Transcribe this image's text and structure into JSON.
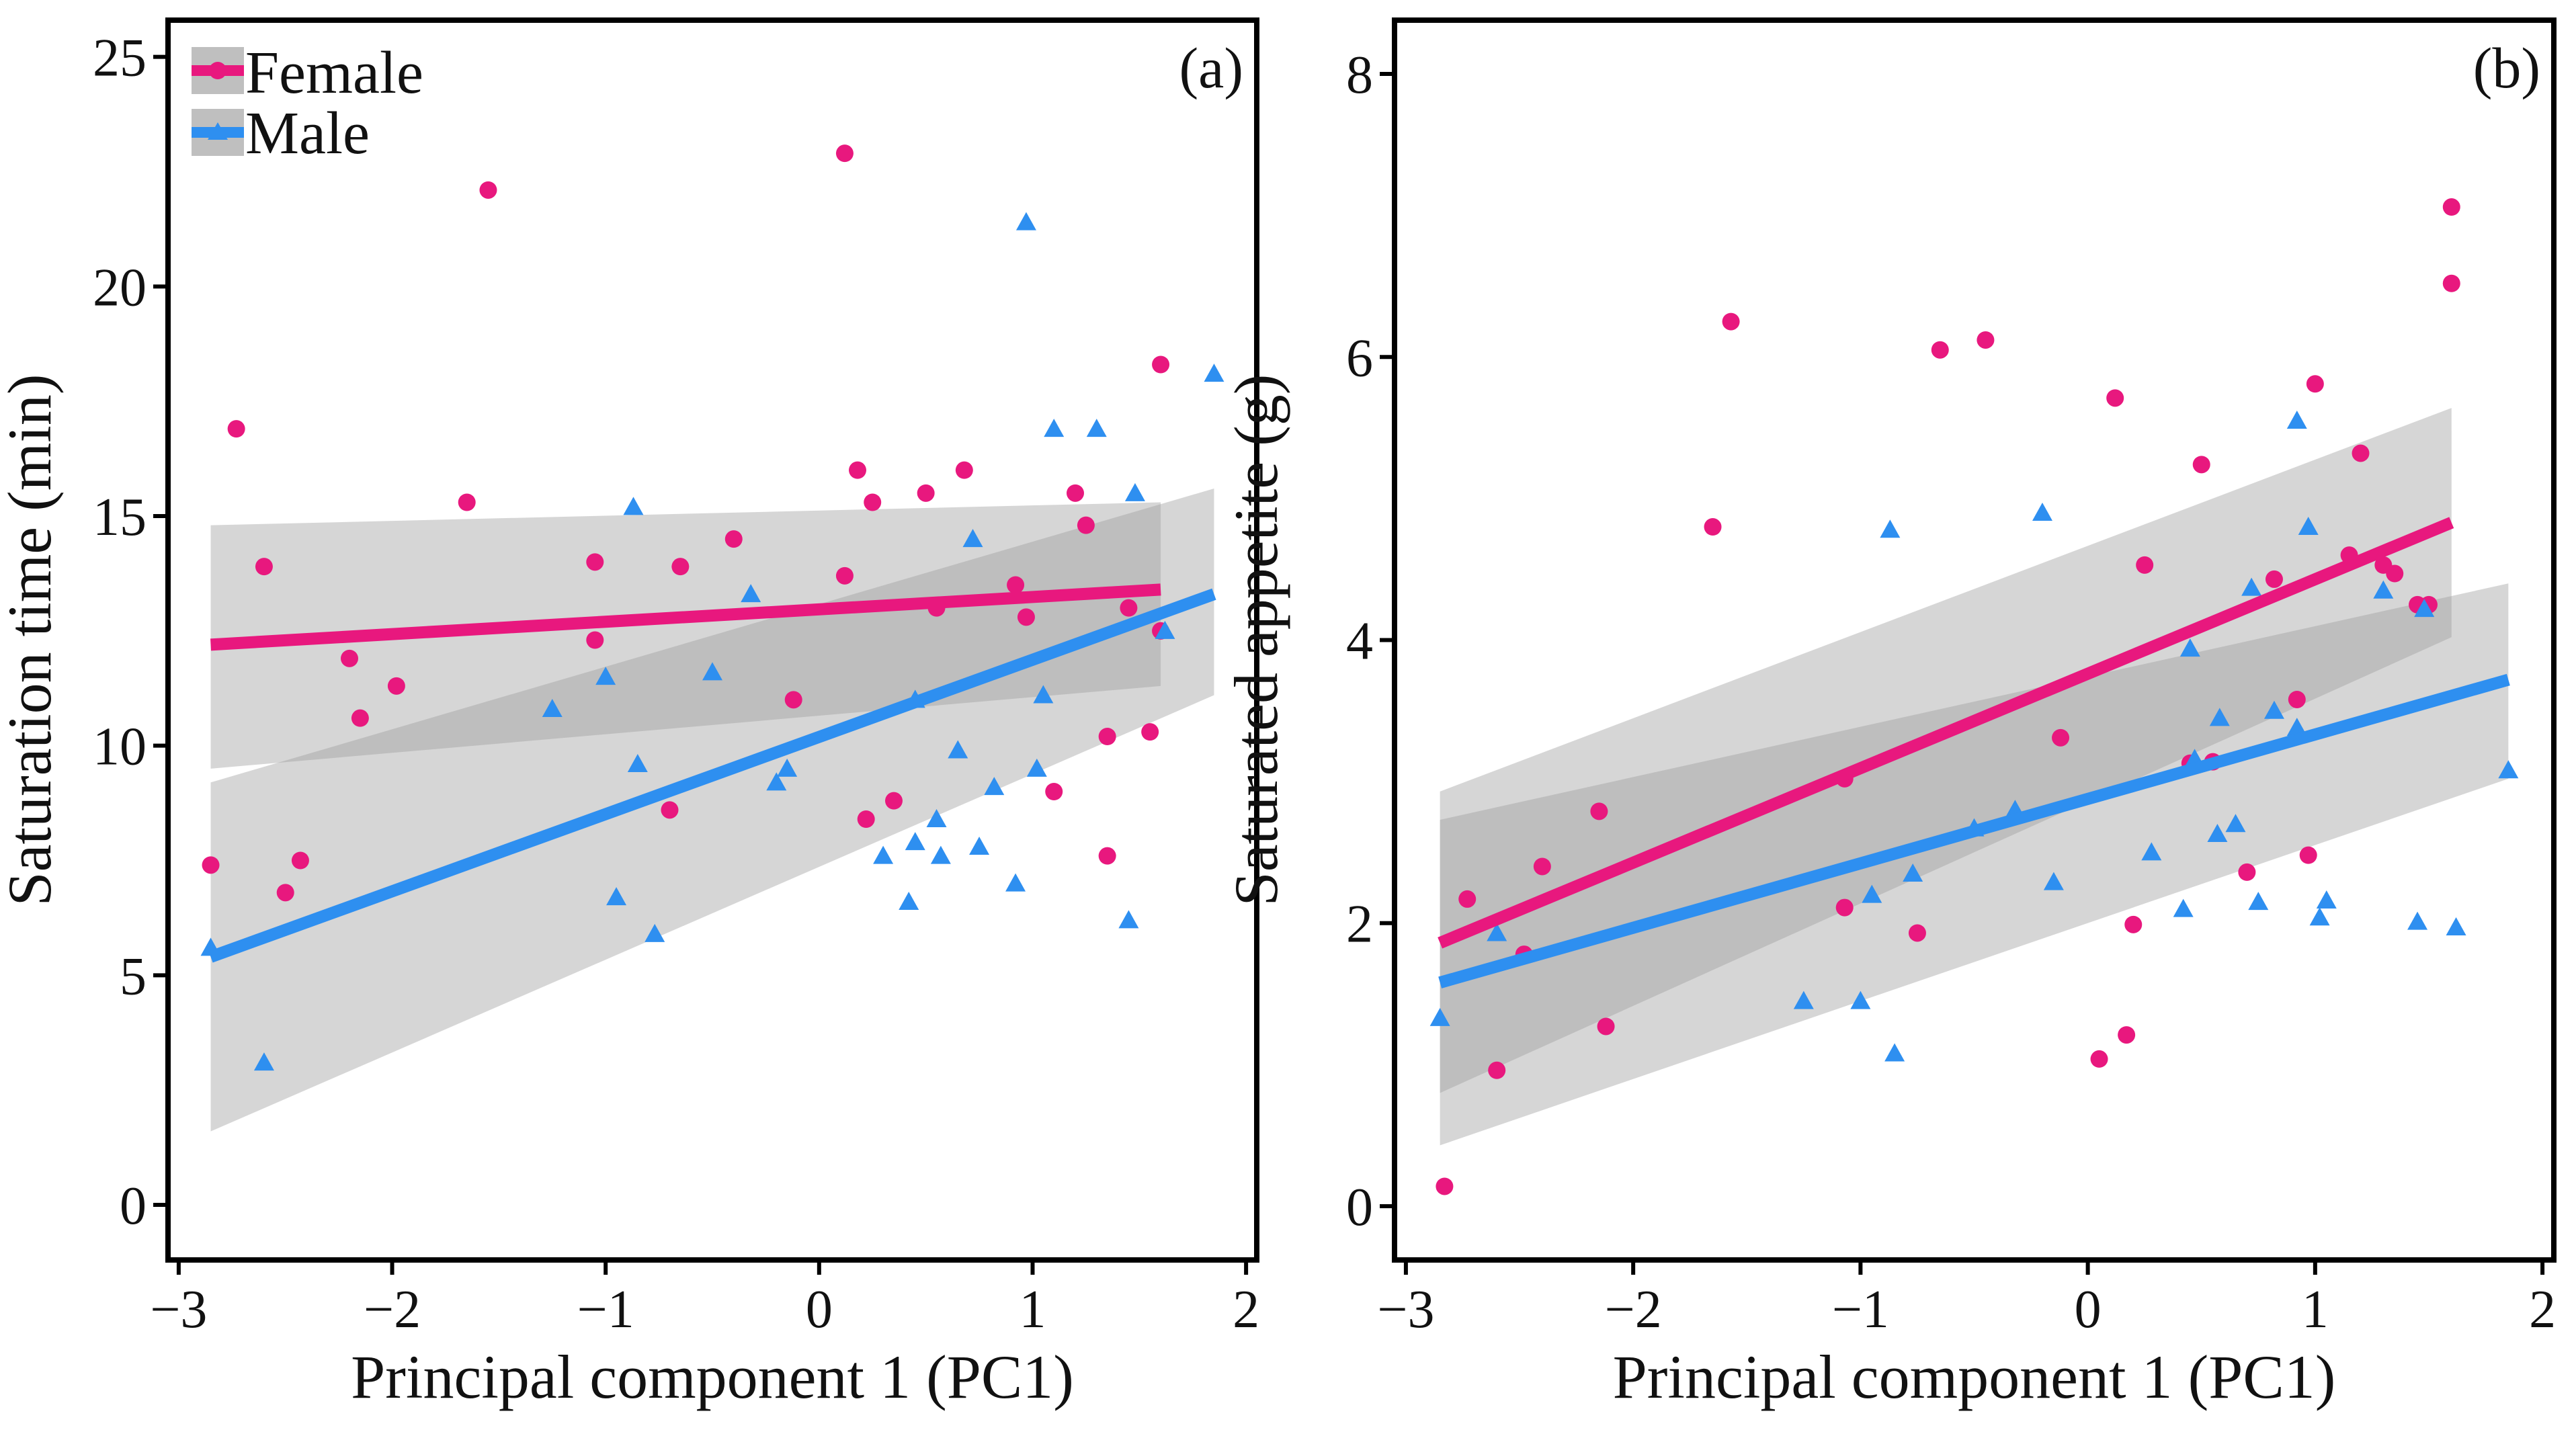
{
  "colors": {
    "female": "#e8187e",
    "male": "#2e8ff0",
    "band": "#9e9e9e",
    "frame": "#000000"
  },
  "legend": {
    "items": [
      {
        "label": "Female",
        "series": "female",
        "marker": "circle"
      },
      {
        "label": "Male",
        "series": "male",
        "marker": "triangle"
      }
    ]
  },
  "chart_data": [
    {
      "type": "scatter",
      "panel_label": "(a)",
      "xlabel": "Principal component 1 (PC1)",
      "ylabel": "Saturation time (min)",
      "xlim": [
        -3.05,
        2.05
      ],
      "ylim": [
        -1.2,
        25.8
      ],
      "xticks": [
        -3,
        -2,
        -1,
        0,
        1,
        2
      ],
      "yticks": [
        0,
        5,
        10,
        15,
        20,
        25
      ],
      "series": [
        {
          "name": "Female",
          "color_key": "female",
          "marker": "circle",
          "points": [
            [
              -2.85,
              7.4
            ],
            [
              -2.73,
              16.9
            ],
            [
              -2.6,
              13.9
            ],
            [
              -2.5,
              6.8
            ],
            [
              -2.43,
              7.5
            ],
            [
              -2.2,
              11.9
            ],
            [
              -2.15,
              10.6
            ],
            [
              -1.98,
              11.3
            ],
            [
              -1.65,
              15.3
            ],
            [
              -1.55,
              22.1
            ],
            [
              -1.05,
              14.0
            ],
            [
              -1.05,
              12.3
            ],
            [
              -0.7,
              8.6
            ],
            [
              -0.65,
              13.9
            ],
            [
              -0.4,
              14.5
            ],
            [
              -0.12,
              11.0
            ],
            [
              0.12,
              13.7
            ],
            [
              0.18,
              16.0
            ],
            [
              0.22,
              8.4
            ],
            [
              0.25,
              15.3
            ],
            [
              0.35,
              8.8
            ],
            [
              0.5,
              15.5
            ],
            [
              0.55,
              13.0
            ],
            [
              0.68,
              16.0
            ],
            [
              0.92,
              13.5
            ],
            [
              0.97,
              12.8
            ],
            [
              1.1,
              9.0
            ],
            [
              1.2,
              15.5
            ],
            [
              1.25,
              14.8
            ],
            [
              1.35,
              10.2
            ],
            [
              1.35,
              7.6
            ],
            [
              1.45,
              13.0
            ],
            [
              1.55,
              10.3
            ],
            [
              1.6,
              18.3
            ],
            [
              1.6,
              12.5
            ],
            [
              0.12,
              22.9
            ]
          ],
          "fit": {
            "x": [
              -2.85,
              1.6
            ],
            "y": [
              12.2,
              13.4
            ],
            "ci_lower": [
              9.5,
              11.3
            ],
            "ci_upper": [
              14.8,
              15.3
            ]
          }
        },
        {
          "name": "Male",
          "color_key": "male",
          "marker": "triangle",
          "points": [
            [
              -2.85,
              5.6
            ],
            [
              -2.6,
              3.1
            ],
            [
              -1.25,
              10.8
            ],
            [
              -1.0,
              11.5
            ],
            [
              -0.95,
              6.7
            ],
            [
              -0.87,
              15.2
            ],
            [
              -0.85,
              9.6
            ],
            [
              -0.77,
              5.9
            ],
            [
              -0.5,
              11.6
            ],
            [
              -0.32,
              13.3
            ],
            [
              -0.2,
              9.2
            ],
            [
              -0.15,
              9.5
            ],
            [
              0.3,
              7.6
            ],
            [
              0.42,
              6.6
            ],
            [
              0.45,
              7.9
            ],
            [
              0.45,
              11.0
            ],
            [
              0.55,
              8.4
            ],
            [
              0.57,
              7.6
            ],
            [
              0.65,
              9.9
            ],
            [
              0.72,
              14.5
            ],
            [
              0.75,
              7.8
            ],
            [
              0.82,
              9.1
            ],
            [
              0.92,
              7.0
            ],
            [
              0.97,
              21.4
            ],
            [
              1.02,
              9.5
            ],
            [
              1.05,
              11.1
            ],
            [
              1.1,
              16.9
            ],
            [
              1.3,
              16.9
            ],
            [
              1.45,
              6.2
            ],
            [
              1.48,
              15.5
            ],
            [
              1.62,
              12.5
            ],
            [
              1.85,
              18.1
            ]
          ],
          "fit": {
            "x": [
              -2.85,
              1.85
            ],
            "y": [
              5.4,
              13.3
            ],
            "ci_lower": [
              1.6,
              11.1
            ],
            "ci_upper": [
              9.2,
              15.6
            ]
          }
        }
      ]
    },
    {
      "type": "scatter",
      "panel_label": "(b)",
      "xlabel": "Principal component 1 (PC1)",
      "ylabel": "Saturated appetite (g)",
      "xlim": [
        -3.05,
        2.05
      ],
      "ylim": [
        -0.38,
        8.38
      ],
      "xticks": [
        -3,
        -2,
        -1,
        0,
        1,
        2
      ],
      "yticks": [
        0,
        2,
        4,
        6,
        8
      ],
      "series": [
        {
          "name": "Female",
          "color_key": "female",
          "marker": "circle",
          "points": [
            [
              -2.83,
              0.14
            ],
            [
              -2.73,
              2.17
            ],
            [
              -2.6,
              0.96
            ],
            [
              -2.48,
              1.78
            ],
            [
              -2.4,
              2.4
            ],
            [
              -2.15,
              2.79
            ],
            [
              -2.12,
              1.27
            ],
            [
              -1.65,
              4.8
            ],
            [
              -1.57,
              6.25
            ],
            [
              -1.07,
              3.02
            ],
            [
              -1.07,
              2.11
            ],
            [
              -0.75,
              1.93
            ],
            [
              -0.65,
              6.05
            ],
            [
              -0.45,
              6.12
            ],
            [
              -0.12,
              3.31
            ],
            [
              0.05,
              1.04
            ],
            [
              0.12,
              5.71
            ],
            [
              0.17,
              1.21
            ],
            [
              0.2,
              1.99
            ],
            [
              0.25,
              4.53
            ],
            [
              0.45,
              3.13
            ],
            [
              0.5,
              5.24
            ],
            [
              0.55,
              3.14
            ],
            [
              0.7,
              2.36
            ],
            [
              0.92,
              3.58
            ],
            [
              0.97,
              2.48
            ],
            [
              1.0,
              5.81
            ],
            [
              1.2,
              5.32
            ],
            [
              1.3,
              4.53
            ],
            [
              1.35,
              4.47
            ],
            [
              1.45,
              4.25
            ],
            [
              1.5,
              4.25
            ],
            [
              1.6,
              7.06
            ],
            [
              1.6,
              6.52
            ],
            [
              1.15,
              4.6
            ],
            [
              0.82,
              4.43
            ]
          ],
          "fit": {
            "x": [
              -2.85,
              1.6
            ],
            "y": [
              1.86,
              4.83
            ],
            "ci_lower": [
              0.8,
              4.02
            ],
            "ci_upper": [
              2.93,
              5.64
            ]
          }
        },
        {
          "name": "Male",
          "color_key": "male",
          "marker": "triangle",
          "points": [
            [
              -2.85,
              1.33
            ],
            [
              -2.6,
              1.93
            ],
            [
              -1.25,
              1.45
            ],
            [
              -1.0,
              1.45
            ],
            [
              -0.95,
              2.2
            ],
            [
              -0.87,
              4.78
            ],
            [
              -0.85,
              1.08
            ],
            [
              -0.77,
              2.35
            ],
            [
              -0.5,
              2.67
            ],
            [
              -0.32,
              2.8
            ],
            [
              -0.2,
              4.9
            ],
            [
              -0.15,
              2.29
            ],
            [
              0.28,
              2.5
            ],
            [
              0.42,
              2.1
            ],
            [
              0.45,
              3.94
            ],
            [
              0.47,
              3.16
            ],
            [
              0.57,
              2.63
            ],
            [
              0.58,
              3.45
            ],
            [
              0.65,
              2.7
            ],
            [
              0.72,
              4.37
            ],
            [
              0.75,
              2.15
            ],
            [
              0.82,
              3.5
            ],
            [
              0.92,
              5.55
            ],
            [
              0.92,
              3.38
            ],
            [
              0.97,
              4.8
            ],
            [
              1.02,
              2.04
            ],
            [
              1.05,
              2.16
            ],
            [
              1.3,
              4.35
            ],
            [
              1.45,
              2.01
            ],
            [
              1.48,
              4.22
            ],
            [
              1.62,
              1.97
            ],
            [
              1.85,
              3.08
            ]
          ],
          "fit": {
            "x": [
              -2.85,
              1.85
            ],
            "y": [
              1.58,
              3.72
            ],
            "ci_lower": [
              0.43,
              3.02
            ],
            "ci_upper": [
              2.73,
              4.4
            ]
          }
        }
      ]
    }
  ]
}
